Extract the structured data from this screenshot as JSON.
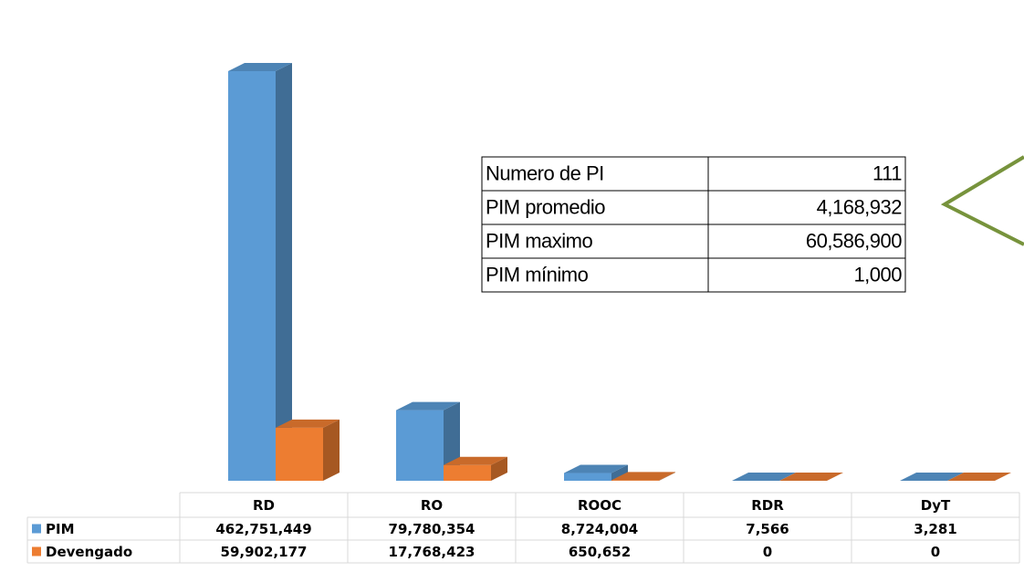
{
  "chart_data": {
    "type": "bar",
    "categories": [
      "RD",
      "RO",
      "ROOC",
      "RDR",
      "DyT"
    ],
    "series": [
      {
        "name": "PIM",
        "color": "#5b9bd5",
        "values": [
          462751449,
          79780354,
          8724004,
          7566,
          3281
        ],
        "value_labels": [
          "462,751,449",
          "79,780,354",
          "8,724,004",
          "7,566",
          "3,281"
        ]
      },
      {
        "name": "Devengado",
        "color": "#ed7d31",
        "values": [
          59902177,
          17768423,
          650652,
          0,
          0
        ],
        "value_labels": [
          "59,902,177",
          "17,768,423",
          "650,652",
          "0",
          "0"
        ]
      }
    ]
  },
  "summary_table": {
    "rows": [
      [
        "Numero de PI",
        "111"
      ],
      [
        "PIM promedio",
        "4,168,932"
      ],
      [
        "PIM maximo",
        "60,586,900"
      ],
      [
        "PIM mínimo",
        "1,000"
      ]
    ]
  }
}
